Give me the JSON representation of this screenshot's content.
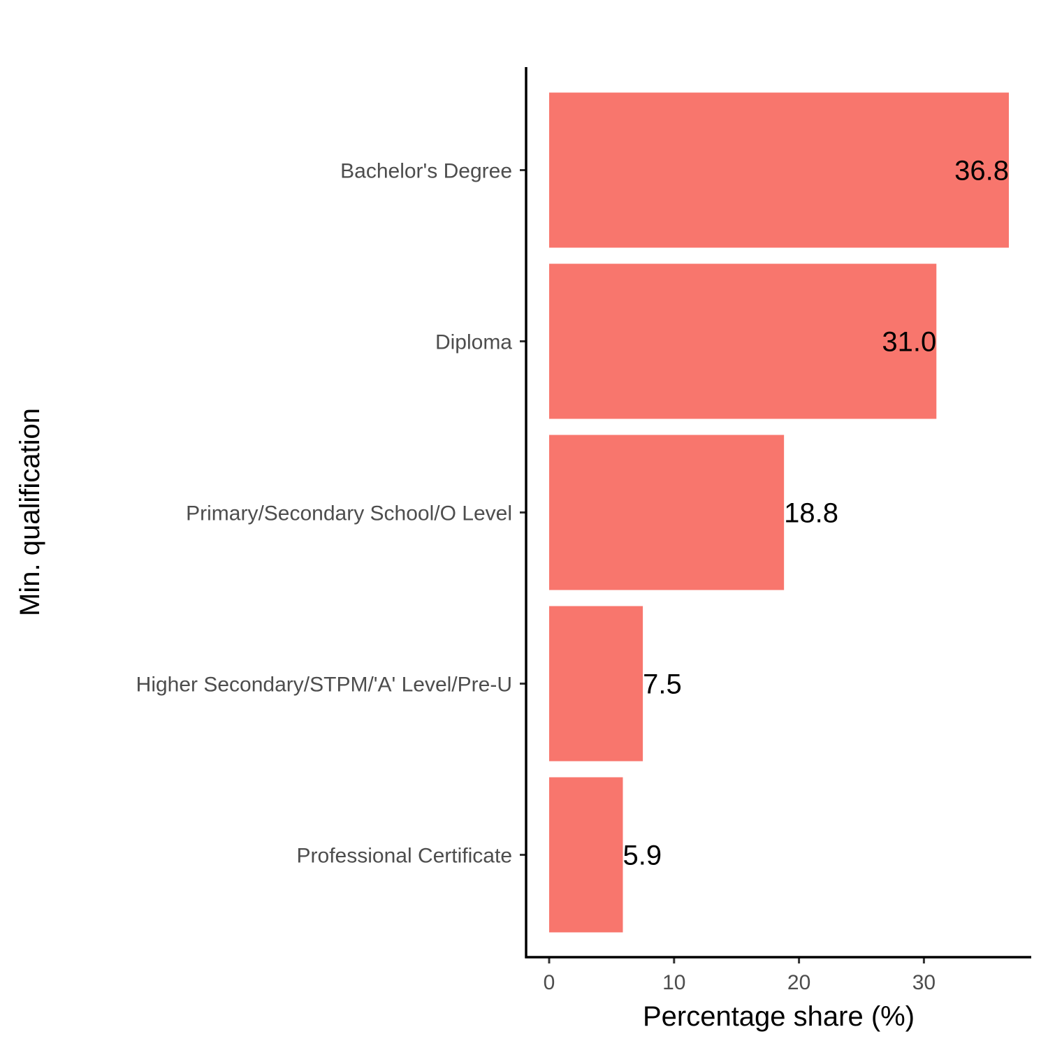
{
  "chart_data": {
    "type": "bar",
    "orientation": "horizontal",
    "categories": [
      "Bachelor's Degree",
      "Diploma",
      "Primary/Secondary School/O Level",
      "Higher Secondary/STPM/'A' Level/Pre-U",
      "Professional Certificate"
    ],
    "values": [
      36.8,
      31.0,
      18.8,
      7.5,
      5.9
    ],
    "data_labels": [
      "36.8",
      "31.0",
      "18.8",
      "7.5",
      "5.9"
    ],
    "title": "",
    "xlabel": "Percentage share (%)",
    "ylabel": "Min. qualification",
    "xlim": [
      0,
      38.7
    ],
    "xticks": [
      0,
      10,
      20,
      30
    ],
    "xtick_labels": [
      "0",
      "10",
      "20",
      "30"
    ],
    "grid": false,
    "legend": "none",
    "bar_color": "#F8766D"
  }
}
